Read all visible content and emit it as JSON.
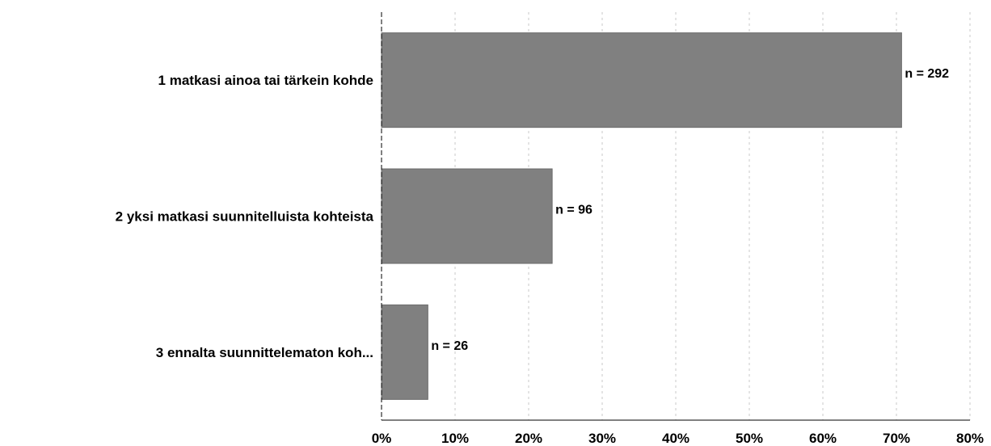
{
  "chart_data": {
    "type": "bar",
    "orientation": "horizontal",
    "categories": [
      "1 matkasi ainoa tai tärkein kohde",
      "2 yksi matkasi suunnitelluista kohteista",
      "3 ennalta suunnittelematon koh..."
    ],
    "values": [
      70.7,
      23.2,
      6.3
    ],
    "data_labels": [
      "n = 292",
      "n = 96",
      "n = 26"
    ],
    "x_ticks": [
      "0%",
      "10%",
      "20%",
      "30%",
      "40%",
      "50%",
      "60%",
      "70%",
      "80%"
    ],
    "xlim": [
      0,
      80
    ],
    "grid": "vertical dashed",
    "bar_color": "#808080",
    "title": "",
    "xlabel": "",
    "ylabel": ""
  }
}
